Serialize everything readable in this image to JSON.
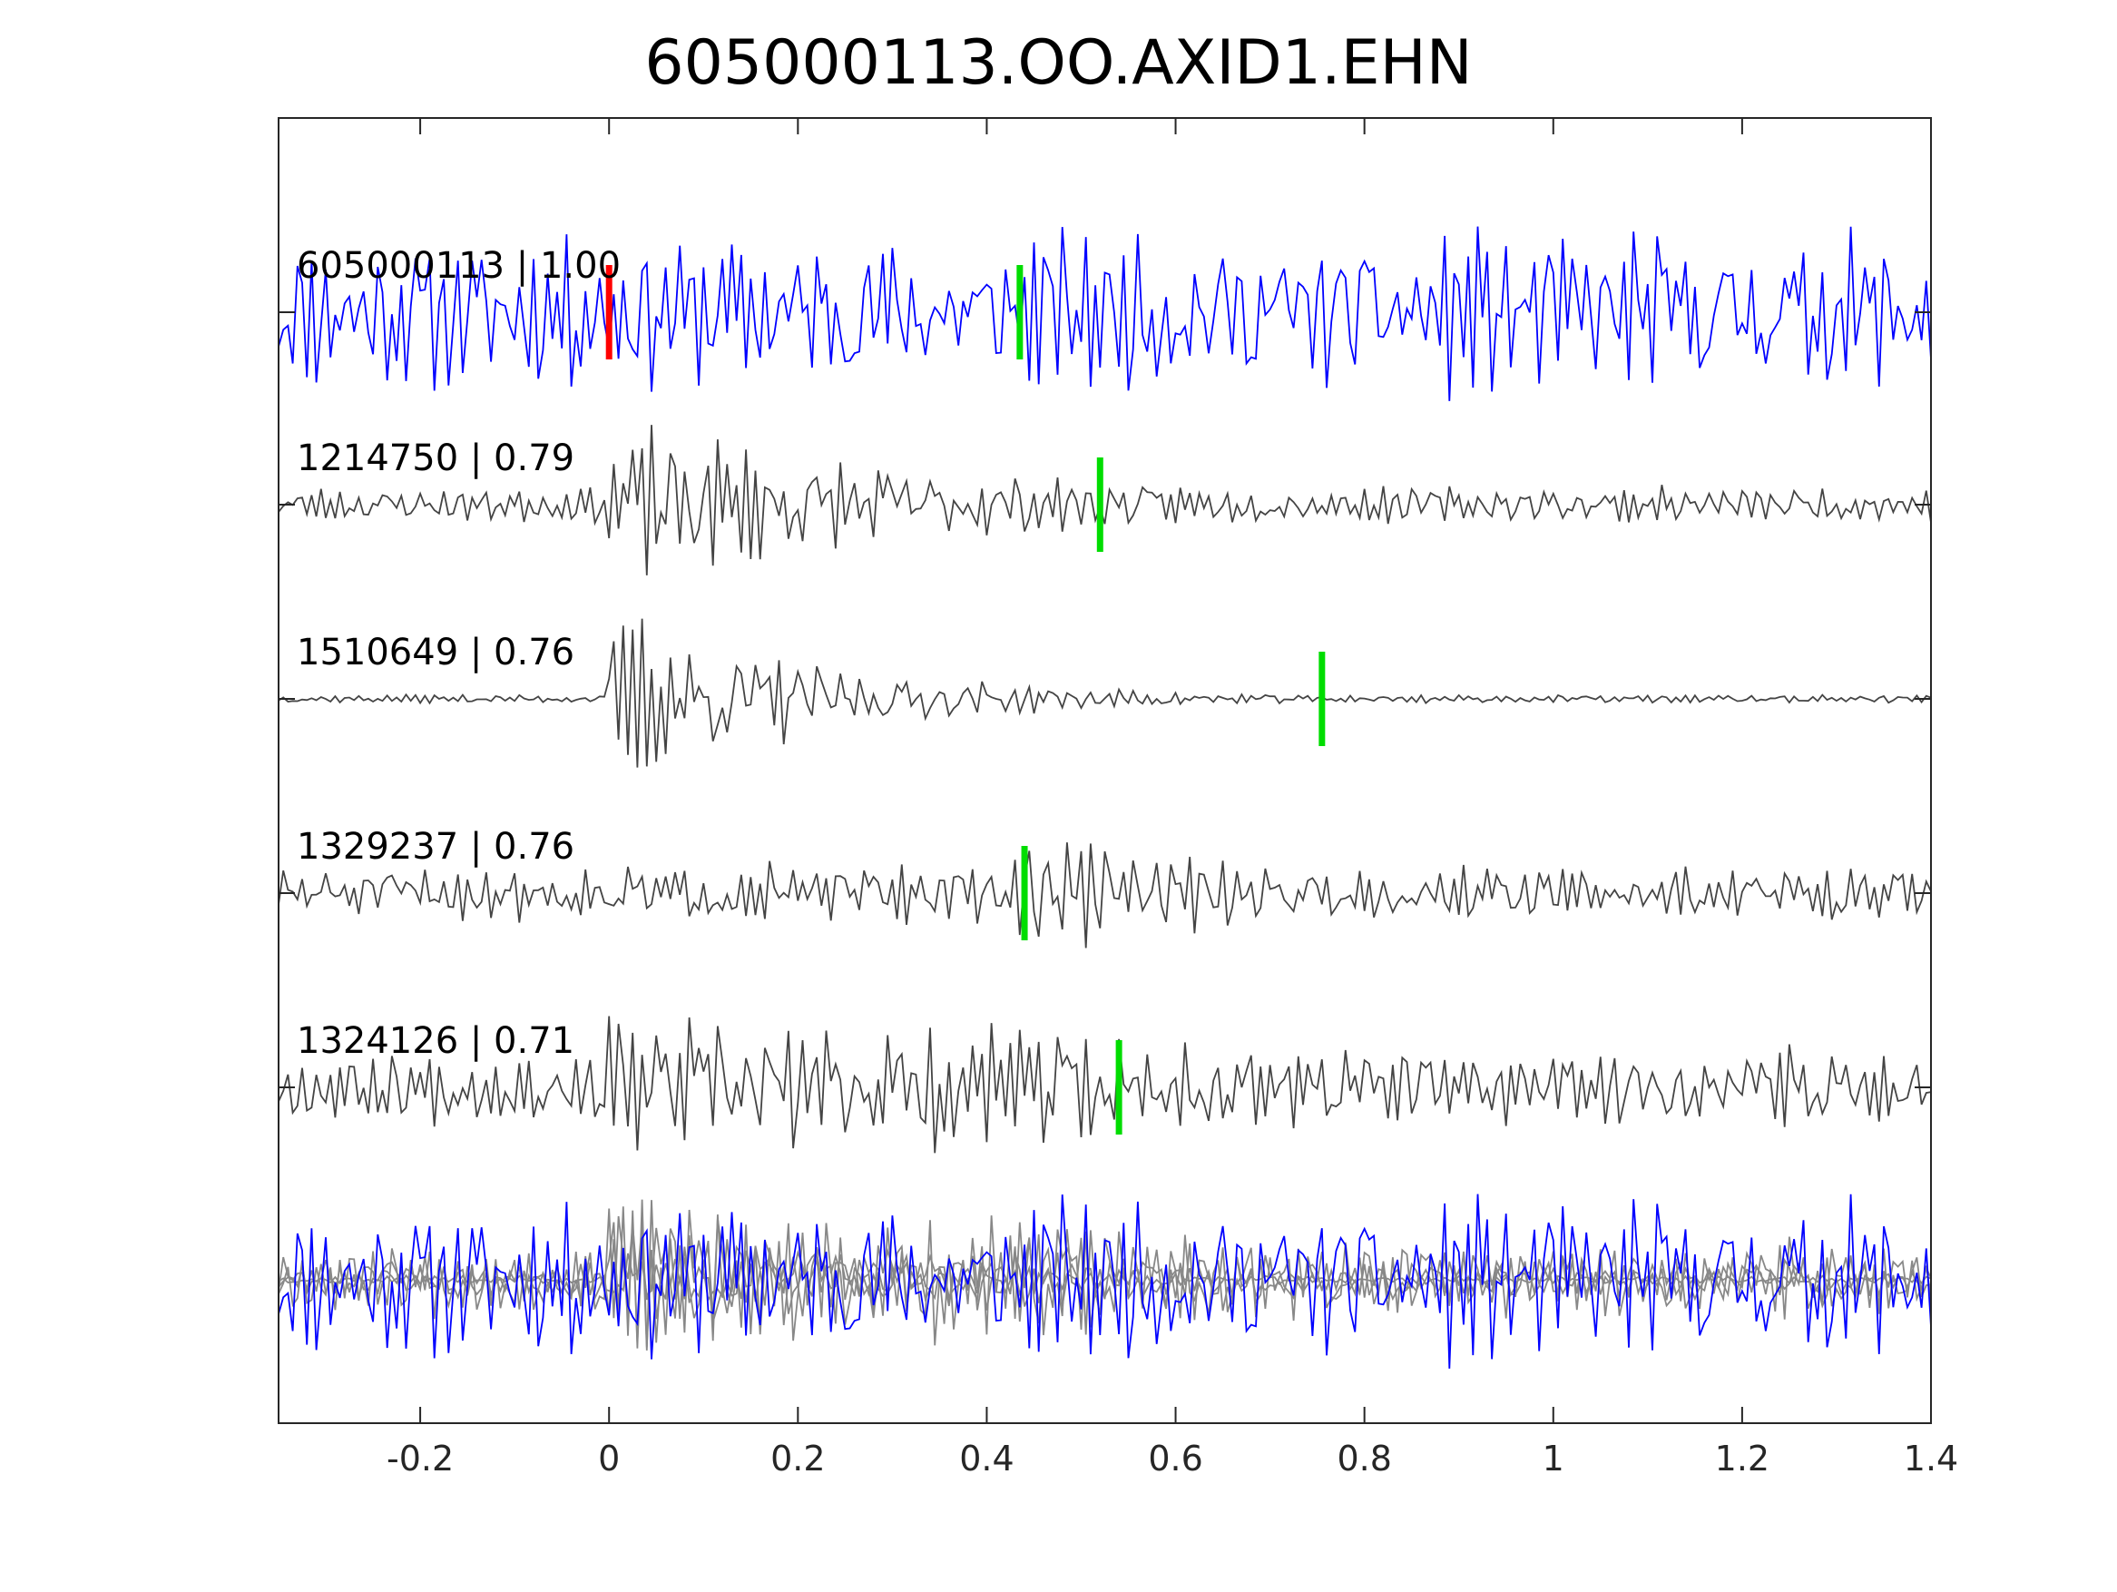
{
  "chart_data": {
    "type": "line",
    "title": "605000113.OO.AXID1.EHN",
    "xlabel": "",
    "ylabel": "",
    "xlim": [
      -0.35,
      1.4
    ],
    "x_ticks": [
      "-0.2",
      "0",
      "0.2",
      "0.4",
      "0.6",
      "0.8",
      "1",
      "1.2",
      "1.4"
    ],
    "x_tick_values": [
      -0.2,
      0,
      0.2,
      0.4,
      0.6,
      0.8,
      1.0,
      1.2,
      1.4
    ],
    "grid": false,
    "colors": {
      "template": "#0000ff",
      "match": "#444444",
      "overlay": "#888888",
      "reference_pick": "#ff0000",
      "pick": "#00dd00",
      "axis": "#262626"
    },
    "traces": [
      {
        "label": "605000113 | 1.00",
        "color": "#0000ff",
        "role": "template",
        "pick": 0.435,
        "reference_pick": 0.0,
        "onset": -0.35,
        "noise": 0.55,
        "signal": 1.0,
        "decay": 0.0,
        "seed": 11
      },
      {
        "label": "1214750 | 0.79",
        "color": "#444444",
        "role": "match",
        "pick": 0.52,
        "onset": 0.0,
        "noise": 0.22,
        "signal": 1.0,
        "decay": 2.2,
        "seed": 23
      },
      {
        "label": "1510649 | 0.76",
        "color": "#444444",
        "role": "match",
        "pick": 0.755,
        "onset": 0.0,
        "noise": 0.05,
        "signal": 1.15,
        "decay": 4.2,
        "seed": 37
      },
      {
        "label": "1329237 | 0.76",
        "color": "#444444",
        "role": "match",
        "pick": 0.44,
        "onset": 0.42,
        "noise": 0.35,
        "signal": 0.85,
        "decay": 3.0,
        "seed": 51
      },
      {
        "label": "1324126 | 0.71",
        "color": "#444444",
        "role": "match",
        "pick": 0.54,
        "onset": 0.0,
        "noise": 0.45,
        "signal": 0.9,
        "decay": 0.6,
        "seed": 67
      }
    ]
  }
}
